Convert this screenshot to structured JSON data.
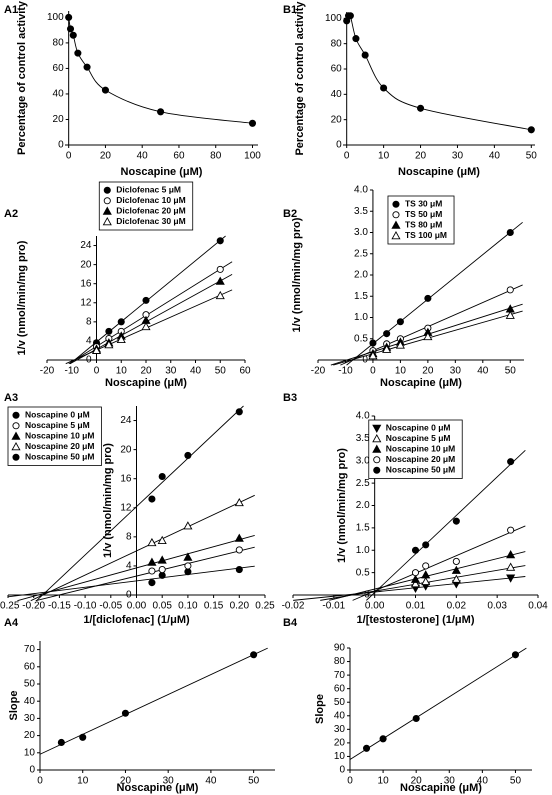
{
  "chart_data": [
    {
      "type": "scatter",
      "label": "A1",
      "fit": "curve",
      "marker": "circle-filled",
      "xlabel": "Noscapine (μM)",
      "ylabel": "Percentage of control activity",
      "x": [
        0,
        1,
        2.5,
        5,
        10,
        20,
        50,
        100
      ],
      "values": [
        100,
        91,
        86,
        72,
        61,
        43,
        26,
        17
      ],
      "xlim": [
        -2,
        103
      ],
      "ylim": [
        0,
        105
      ],
      "xticks": [
        0,
        20,
        40,
        60,
        80,
        100
      ],
      "yticks": [
        0,
        20,
        40,
        60,
        80,
        100
      ]
    },
    {
      "type": "scatter",
      "label": "B1",
      "fit": "curve",
      "marker": "circle-filled",
      "xlabel": "Noscapine (μM)",
      "ylabel": "Percentage of control activity",
      "x": [
        0,
        0.5,
        1,
        2.5,
        5,
        10,
        20,
        50
      ],
      "values": [
        98,
        102,
        102,
        84,
        71,
        45,
        29,
        12
      ],
      "xlim": [
        -1,
        51
      ],
      "ylim": [
        0,
        105
      ],
      "xticks": [
        0,
        10,
        20,
        30,
        40,
        50
      ],
      "yticks": [
        0,
        20,
        40,
        60,
        80,
        100
      ]
    },
    {
      "type": "scatter",
      "label": "A2",
      "fit": "linear",
      "legend": "upper center",
      "xlabel": "Noscapine (μM)",
      "ylabel": "1/v (nmol/min/mg pro)",
      "x": [
        0,
        5,
        10,
        20,
        50
      ],
      "series": [
        {
          "name": "Diclofenac 5 μM",
          "marker": "circle-filled",
          "values": [
            3.6,
            6,
            8,
            12.5,
            25
          ]
        },
        {
          "name": "Diclofenac 10 μM",
          "marker": "circle-open",
          "values": [
            2.8,
            4.5,
            6,
            9.5,
            19
          ]
        },
        {
          "name": "Diclofenac 20 μM",
          "marker": "triangle-filled",
          "values": [
            2.3,
            3.6,
            5,
            8.3,
            16.5
          ]
        },
        {
          "name": "Diclofenac 30 μM",
          "marker": "triangle-open",
          "values": [
            2,
            3.2,
            4.3,
            7,
            13.5
          ]
        }
      ],
      "xlim": [
        -20,
        60
      ],
      "ylim": [
        0,
        26
      ],
      "xticks": [
        -20,
        -10,
        0,
        10,
        20,
        30,
        40,
        50,
        60
      ],
      "yticks": [
        0,
        4,
        8,
        12,
        16,
        20,
        24
      ]
    },
    {
      "type": "scatter",
      "label": "B2",
      "fit": "linear",
      "legend": "upper center",
      "xlabel": "Noscapine (μM)",
      "ylabel": "1/v (nmol/min/mg pro)",
      "x": [
        0,
        5,
        10,
        20,
        50
      ],
      "series": [
        {
          "name": "TS 30 μM",
          "marker": "circle-filled",
          "values": [
            0.4,
            0.62,
            0.9,
            1.45,
            3.0
          ]
        },
        {
          "name": "TS 50 μM",
          "marker": "circle-open",
          "values": [
            0.22,
            0.38,
            0.5,
            0.75,
            1.65
          ]
        },
        {
          "name": "TS 80 μM",
          "marker": "triangle-filled",
          "values": [
            0.15,
            0.3,
            0.42,
            0.65,
            1.2
          ]
        },
        {
          "name": "TS 100 μM",
          "marker": "triangle-open",
          "values": [
            0.1,
            0.25,
            0.35,
            0.55,
            1.05
          ]
        }
      ],
      "xlim": [
        -20,
        55
      ],
      "ylim": [
        0,
        4
      ],
      "xticks": [
        -20,
        -10,
        0,
        10,
        20,
        30,
        40,
        50
      ],
      "yticks": [
        0,
        0.5,
        {
          "value": 1,
          "label": "1.0"
        },
        1.5,
        {
          "value": 2,
          "label": "2.0"
        },
        2.5,
        {
          "value": 3,
          "label": "3.0"
        },
        3.5,
        {
          "value": 4,
          "label": "4.0"
        }
      ]
    },
    {
      "type": "scatter",
      "label": "A3",
      "fit": "linear",
      "legend": "upper left",
      "xlabel": "1/[diclofenac] (1/μM)",
      "ylabel": "1/v (nmol/min/mg pro)",
      "x": [
        0.03,
        0.05,
        0.1,
        0.2
      ],
      "series": [
        {
          "name": "Noscapine 0 μM",
          "marker": "circle-filled",
          "values": [
            1.7,
            2.7,
            3.2,
            3.5
          ]
        },
        {
          "name": "Noscapine 5 μM",
          "marker": "circle-open",
          "values": [
            3.3,
            3.5,
            4.0,
            6.2
          ]
        },
        {
          "name": "Noscapine 10 μM",
          "marker": "triangle-filled",
          "values": [
            4.5,
            4.8,
            5.2,
            7.8
          ]
        },
        {
          "name": "Noscapine 20 μM",
          "marker": "triangle-open",
          "values": [
            7.2,
            7.5,
            9.5,
            12.7
          ]
        },
        {
          "name": "Noscapine 50 μM",
          "marker": "circle-filled",
          "values": [
            13.2,
            16.3,
            19.2,
            25.2
          ]
        }
      ],
      "xlim": [
        -0.25,
        0.25
      ],
      "ylim": [
        0,
        26
      ],
      "xticks": [
        -0.25,
        {
          "value": -0.2,
          "label": "-0.20"
        },
        -0.15,
        {
          "value": -0.1,
          "label": "-0.10"
        },
        -0.05,
        {
          "value": 0,
          "label": "0.00"
        },
        0.05,
        {
          "value": 0.1,
          "label": "0.10"
        },
        0.15,
        {
          "value": 0.2,
          "label": "0.20"
        },
        0.25
      ],
      "yticks": [
        0,
        4,
        8,
        12,
        16,
        20,
        24
      ]
    },
    {
      "type": "scatter",
      "label": "B3",
      "fit": "linear",
      "legend": "upper center",
      "xlabel": "1/[testosterone] (1/μM)",
      "ylabel": "1/v (nmol/min/mg pro)",
      "x": [
        0.01,
        0.0125,
        0.02,
        0.0333
      ],
      "series": [
        {
          "name": "Noscapine 0 μM",
          "marker": "triangle-down-filled",
          "values": [
            0.15,
            0.2,
            0.25,
            0.38
          ]
        },
        {
          "name": "Noscapine 5 μM",
          "marker": "triangle-open",
          "values": [
            0.25,
            0.3,
            0.35,
            0.62
          ]
        },
        {
          "name": "Noscapine 10 μM",
          "marker": "triangle-filled",
          "values": [
            0.35,
            0.45,
            0.55,
            0.9
          ]
        },
        {
          "name": "Noscapine 20 μM",
          "marker": "circle-open",
          "values": [
            0.5,
            0.65,
            0.75,
            1.45
          ]
        },
        {
          "name": "Noscapine 50 μM",
          "marker": "circle-filled",
          "values": [
            1.0,
            1.12,
            1.65,
            2.98
          ]
        }
      ],
      "xlim": [
        -0.02,
        0.04
      ],
      "ylim": [
        0,
        4
      ],
      "xticks": [
        -0.02,
        -0.01,
        {
          "value": 0,
          "label": "0.00"
        },
        0.01,
        0.02,
        0.03,
        0.04
      ],
      "yticks": [
        0,
        0.5,
        {
          "value": 1,
          "label": "1.0"
        },
        1.5,
        {
          "value": 2,
          "label": "2.0"
        },
        2.5,
        {
          "value": 3,
          "label": "3.0"
        },
        3.5,
        {
          "value": 4,
          "label": "4.0"
        }
      ]
    },
    {
      "type": "scatter",
      "label": "A4",
      "fit": "linear",
      "marker": "circle-filled",
      "xlabel": "Noscapine (μM)",
      "ylabel": "Slope",
      "x": [
        5,
        10,
        20,
        50
      ],
      "values": [
        16,
        19,
        33,
        67
      ],
      "xlim": [
        0,
        55
      ],
      "ylim": [
        0,
        75
      ],
      "xticks": [
        0,
        10,
        20,
        30,
        40,
        50
      ],
      "yticks": [
        0,
        10,
        20,
        30,
        40,
        50,
        60,
        70
      ]
    },
    {
      "type": "scatter",
      "label": "B4",
      "fit": "linear",
      "marker": "circle-filled",
      "xlabel": "Noscapine (μM)",
      "ylabel": "Slope",
      "x": [
        5,
        10,
        20,
        50
      ],
      "values": [
        16,
        23,
        38,
        85
      ],
      "xlim": [
        0,
        55
      ],
      "ylim": [
        0,
        90
      ],
      "xticks": [
        0,
        10,
        20,
        30,
        40,
        50
      ],
      "yticks": [
        0,
        10,
        20,
        30,
        40,
        50,
        60,
        70,
        80,
        90
      ]
    }
  ]
}
